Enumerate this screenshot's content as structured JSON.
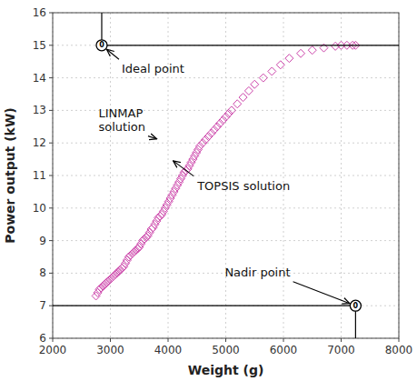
{
  "chart_data": {
    "type": "scatter",
    "title": "",
    "xlabel": "Weight (g)",
    "ylabel": "Power output (kW)",
    "xlim": [
      2000,
      8000
    ],
    "ylim": [
      6,
      16
    ],
    "xticks": [
      2000,
      3000,
      4000,
      5000,
      6000,
      7000,
      8000
    ],
    "yticks": [
      6,
      7,
      8,
      9,
      10,
      11,
      12,
      13,
      14,
      15,
      16
    ],
    "grid": true,
    "color": "#cc44aa",
    "marker": "diamond",
    "x": [
      2750,
      2780,
      2810,
      2840,
      2870,
      2900,
      2930,
      2960,
      2990,
      3020,
      3050,
      3080,
      3110,
      3140,
      3170,
      3200,
      3230,
      3260,
      3290,
      3320,
      3350,
      3380,
      3410,
      3440,
      3470,
      3500,
      3530,
      3560,
      3590,
      3620,
      3650,
      3680,
      3710,
      3740,
      3770,
      3800,
      3830,
      3860,
      3890,
      3920,
      3950,
      3980,
      4010,
      4040,
      4070,
      4100,
      4130,
      4160,
      4190,
      4220,
      4250,
      4280,
      4310,
      4340,
      4370,
      4400,
      4430,
      4460,
      4490,
      4520,
      4550,
      4600,
      4650,
      4700,
      4750,
      4800,
      4850,
      4900,
      4950,
      5000,
      5050,
      5100,
      5200,
      5300,
      5400,
      5500,
      5650,
      5800,
      5950,
      6100,
      6300,
      6500,
      6700,
      6900,
      7000,
      7100,
      7200,
      7250
    ],
    "values": [
      7.3,
      7.4,
      7.5,
      7.55,
      7.6,
      7.65,
      7.7,
      7.75,
      7.8,
      7.85,
      7.9,
      7.95,
      8.0,
      8.05,
      8.1,
      8.15,
      8.2,
      8.3,
      8.4,
      8.5,
      8.55,
      8.6,
      8.65,
      8.7,
      8.75,
      8.8,
      8.9,
      9.0,
      9.05,
      9.1,
      9.15,
      9.25,
      9.35,
      9.4,
      9.5,
      9.6,
      9.7,
      9.75,
      9.8,
      9.9,
      10.0,
      10.1,
      10.2,
      10.3,
      10.4,
      10.5,
      10.6,
      10.7,
      10.8,
      10.9,
      11.0,
      11.1,
      11.15,
      11.2,
      11.3,
      11.4,
      11.5,
      11.6,
      11.7,
      11.8,
      11.9,
      12.0,
      12.1,
      12.2,
      12.3,
      12.4,
      12.5,
      12.6,
      12.7,
      12.8,
      12.9,
      13.0,
      13.2,
      13.4,
      13.6,
      13.8,
      14.0,
      14.2,
      14.4,
      14.6,
      14.75,
      14.85,
      14.92,
      14.97,
      15.0,
      15.0,
      15.0,
      15.0
    ],
    "annotations": [
      {
        "text": "Ideal point",
        "x": 2850,
        "y": 15.0,
        "marker_label": "0"
      },
      {
        "text": "LINMAP\nsolution",
        "x": 3850,
        "y": 12.1
      },
      {
        "text": "TOPSIS solution",
        "x": 4050,
        "y": 11.5
      },
      {
        "text": "Nadir point",
        "x": 7250,
        "y": 7.0,
        "marker_label": "0"
      }
    ]
  }
}
